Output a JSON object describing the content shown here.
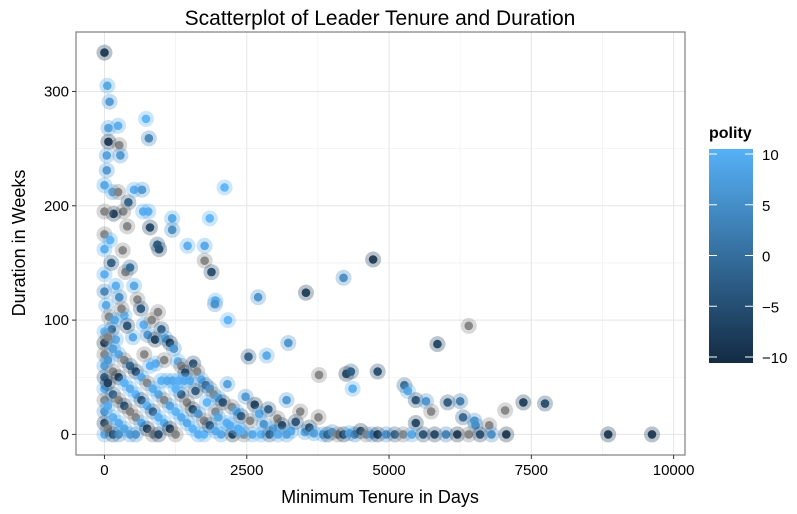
{
  "chart_data": {
    "type": "scatter",
    "title": "Scatterplot of Leader Tenure and Duration",
    "xlabel": "Minimum Tenure in Days",
    "ylabel": "Duration in Weeks",
    "xlim": [
      -500,
      10200
    ],
    "ylim": [
      -18,
      352
    ],
    "xticks": [
      0,
      2500,
      5000,
      7500,
      10000
    ],
    "xtick_labels": [
      "0",
      "2500",
      "5000",
      "7500",
      "10000"
    ],
    "yticks": [
      0,
      100,
      200,
      300
    ],
    "ytick_labels": [
      "0",
      "100",
      "200",
      "300"
    ],
    "grid": true,
    "legend": {
      "title": "polity",
      "placement": "right",
      "type": "colorbar",
      "range": [
        -10,
        10
      ],
      "ticks": [
        10,
        5,
        0,
        -5,
        -10
      ],
      "tick_labels": [
        "10",
        "5",
        "0",
        "−5",
        "−10"
      ],
      "low_color": "#132B43",
      "high_color": "#56B1F7",
      "na_color": "#7F7F7F"
    },
    "point_fields": [
      "min_tenure_days",
      "duration_weeks",
      "polity"
    ],
    "points": [
      [
        0,
        334,
        -9
      ],
      [
        50,
        305,
        8
      ],
      [
        90,
        291,
        6
      ],
      [
        70,
        268,
        7
      ],
      [
        240,
        270,
        9
      ],
      [
        260,
        253,
        null
      ],
      [
        70,
        256,
        -9
      ],
      [
        730,
        276,
        10
      ],
      [
        780,
        259,
        3
      ],
      [
        40,
        244,
        7
      ],
      [
        280,
        244,
        6
      ],
      [
        40,
        231,
        6
      ],
      [
        0,
        218,
        8
      ],
      [
        140,
        212,
        8
      ],
      [
        240,
        212,
        null
      ],
      [
        420,
        203,
        -3
      ],
      [
        520,
        214,
        9
      ],
      [
        660,
        214,
        6
      ],
      [
        680,
        195,
        9
      ],
      [
        770,
        195,
        9
      ],
      [
        330,
        195,
        null
      ],
      [
        160,
        193,
        -8
      ],
      [
        400,
        182,
        null
      ],
      [
        800,
        181,
        -7
      ],
      [
        2110,
        216,
        10
      ],
      [
        1850,
        189,
        10
      ],
      [
        0,
        195,
        null
      ],
      [
        0,
        175,
        null
      ],
      [
        0,
        162,
        9
      ],
      [
        320,
        161,
        null
      ],
      [
        960,
        162,
        -6
      ],
      [
        1190,
        189,
        8
      ],
      [
        1190,
        179,
        4
      ],
      [
        930,
        166,
        -4
      ],
      [
        1460,
        165,
        9
      ],
      [
        1760,
        165,
        8
      ],
      [
        1760,
        152,
        null
      ],
      [
        1880,
        142,
        -6
      ],
      [
        1950,
        117,
        10
      ],
      [
        1940,
        114,
        5
      ],
      [
        2170,
        100,
        10
      ],
      [
        2700,
        120,
        5
      ],
      [
        3540,
        124,
        -8
      ],
      [
        4200,
        137,
        4
      ],
      [
        4720,
        153,
        -9
      ],
      [
        6400,
        95,
        null
      ],
      [
        5850,
        79,
        -7
      ],
      [
        3230,
        80,
        5
      ],
      [
        2850,
        69,
        8
      ],
      [
        2530,
        68,
        -3
      ],
      [
        3770,
        52,
        null
      ],
      [
        4250,
        53,
        -8
      ],
      [
        4360,
        40,
        9
      ],
      [
        4330,
        55,
        -3
      ],
      [
        4800,
        55,
        -6
      ],
      [
        5270,
        43,
        -2
      ],
      [
        5330,
        38,
        8
      ],
      [
        5470,
        30,
        -5
      ],
      [
        5650,
        29,
        5
      ],
      [
        5740,
        20,
        null
      ],
      [
        6030,
        28,
        -4
      ],
      [
        6250,
        29,
        1
      ],
      [
        6300,
        15,
        -2
      ],
      [
        6520,
        8,
        4
      ],
      [
        6760,
        8,
        null
      ],
      [
        7040,
        21,
        null
      ],
      [
        7360,
        28,
        -8
      ],
      [
        7740,
        27,
        -6
      ],
      [
        7060,
        0,
        -9
      ],
      [
        8850,
        0,
        -9
      ],
      [
        9620,
        0,
        -9
      ],
      [
        5470,
        10,
        -7
      ],
      [
        6500,
        12,
        5
      ],
      [
        0,
        140,
        9
      ],
      [
        0,
        125,
        3
      ],
      [
        30,
        113,
        8
      ],
      [
        80,
        103,
        null
      ],
      [
        130,
        92,
        -2
      ],
      [
        200,
        83,
        9
      ],
      [
        260,
        120,
        4
      ],
      [
        350,
        104,
        10
      ],
      [
        370,
        142,
        null
      ],
      [
        450,
        146,
        -1
      ],
      [
        520,
        130,
        8
      ],
      [
        580,
        118,
        null
      ],
      [
        640,
        110,
        -4
      ],
      [
        690,
        96,
        9
      ],
      [
        760,
        87,
        5
      ],
      [
        830,
        100,
        null
      ],
      [
        890,
        83,
        -8
      ],
      [
        940,
        107,
        null
      ],
      [
        1000,
        92,
        -3
      ],
      [
        1070,
        84,
        7
      ],
      [
        1150,
        80,
        -9
      ],
      [
        1220,
        75,
        6
      ],
      [
        1290,
        64,
        10
      ],
      [
        1350,
        60,
        null
      ],
      [
        1420,
        54,
        -7
      ],
      [
        1500,
        47,
        8
      ],
      [
        1560,
        62,
        -5
      ],
      [
        1630,
        55,
        null
      ],
      [
        1700,
        48,
        9
      ],
      [
        1780,
        43,
        -2
      ],
      [
        1850,
        40,
        5
      ],
      [
        1920,
        35,
        null
      ],
      [
        2000,
        32,
        8
      ],
      [
        2080,
        28,
        -6
      ],
      [
        2160,
        44,
        7
      ],
      [
        2240,
        24,
        null
      ],
      [
        2320,
        20,
        9
      ],
      [
        2400,
        16,
        -4
      ],
      [
        2480,
        33,
        6
      ],
      [
        2560,
        12,
        null
      ],
      [
        2640,
        26,
        -8
      ],
      [
        2720,
        18,
        8
      ],
      [
        2800,
        9,
        5
      ],
      [
        2880,
        22,
        -3
      ],
      [
        2960,
        5,
        9
      ],
      [
        3040,
        14,
        null
      ],
      [
        3120,
        8,
        -7
      ],
      [
        3200,
        30,
        6
      ],
      [
        3280,
        3,
        9
      ],
      [
        3360,
        11,
        -5
      ],
      [
        3440,
        20,
        null
      ],
      [
        3520,
        2,
        8
      ],
      [
        3600,
        6,
        -6
      ],
      [
        3680,
        1,
        7
      ],
      [
        3760,
        15,
        null
      ],
      [
        3840,
        0,
        9
      ],
      [
        3920,
        0,
        -4
      ],
      [
        4000,
        2,
        5
      ],
      [
        4100,
        0,
        null
      ],
      [
        4200,
        0,
        -8
      ],
      [
        4300,
        1,
        8
      ],
      [
        4400,
        0,
        3
      ],
      [
        4500,
        3,
        -7
      ],
      [
        4600,
        0,
        null
      ],
      [
        4700,
        0,
        6
      ],
      [
        4800,
        0,
        -9
      ],
      [
        4950,
        0,
        4
      ],
      [
        5100,
        0,
        -3
      ],
      [
        5250,
        0,
        null
      ],
      [
        5400,
        0,
        8
      ],
      [
        5600,
        0,
        -5
      ],
      [
        5800,
        0,
        -7
      ],
      [
        6000,
        0,
        2
      ],
      [
        6200,
        0,
        -9
      ],
      [
        6400,
        0,
        null
      ],
      [
        6600,
        0,
        -6
      ],
      [
        6800,
        0,
        4
      ],
      [
        0,
        90,
        10
      ],
      [
        0,
        80,
        -9
      ],
      [
        0,
        70,
        null
      ],
      [
        0,
        60,
        7
      ],
      [
        0,
        50,
        -4
      ],
      [
        0,
        40,
        9
      ],
      [
        0,
        30,
        null
      ],
      [
        0,
        20,
        5
      ],
      [
        0,
        10,
        -7
      ],
      [
        0,
        0,
        9
      ],
      [
        60,
        85,
        null
      ],
      [
        60,
        65,
        6
      ],
      [
        60,
        45,
        -8
      ],
      [
        60,
        25,
        9
      ],
      [
        60,
        5,
        null
      ],
      [
        150,
        75,
        7
      ],
      [
        150,
        55,
        null
      ],
      [
        150,
        35,
        -3
      ],
      [
        150,
        15,
        10
      ],
      [
        150,
        0,
        -6
      ],
      [
        250,
        70,
        8
      ],
      [
        250,
        50,
        -9
      ],
      [
        250,
        30,
        null
      ],
      [
        250,
        10,
        9
      ],
      [
        250,
        0,
        4
      ],
      [
        350,
        65,
        null
      ],
      [
        350,
        45,
        10
      ],
      [
        350,
        25,
        -6
      ],
      [
        350,
        5,
        8
      ],
      [
        450,
        60,
        -2
      ],
      [
        450,
        40,
        9
      ],
      [
        450,
        20,
        null
      ],
      [
        450,
        0,
        7
      ],
      [
        550,
        55,
        -7
      ],
      [
        550,
        35,
        10
      ],
      [
        550,
        15,
        null
      ],
      [
        550,
        0,
        5
      ],
      [
        650,
        50,
        9
      ],
      [
        650,
        30,
        -5
      ],
      [
        650,
        10,
        8
      ],
      [
        750,
        45,
        null
      ],
      [
        750,
        25,
        10
      ],
      [
        750,
        5,
        -8
      ],
      [
        850,
        40,
        9
      ],
      [
        850,
        20,
        -3
      ],
      [
        850,
        0,
        null
      ],
      [
        950,
        35,
        8
      ],
      [
        950,
        15,
        10
      ],
      [
        950,
        0,
        -6
      ],
      [
        1050,
        30,
        null
      ],
      [
        1050,
        10,
        9
      ],
      [
        1150,
        25,
        7
      ],
      [
        1150,
        5,
        -9
      ],
      [
        1250,
        20,
        10
      ],
      [
        1250,
        0,
        null
      ],
      [
        1350,
        15,
        9
      ],
      [
        1350,
        35,
        -4
      ],
      [
        1450,
        10,
        8
      ],
      [
        1450,
        28,
        null
      ],
      [
        1550,
        5,
        10
      ],
      [
        1550,
        22,
        -7
      ],
      [
        1650,
        0,
        9
      ],
      [
        1650,
        18,
        6
      ],
      [
        1750,
        12,
        null
      ],
      [
        1750,
        0,
        10
      ],
      [
        1850,
        8,
        -5
      ],
      [
        1950,
        3,
        9
      ],
      [
        1950,
        20,
        null
      ],
      [
        2050,
        0,
        8
      ],
      [
        2150,
        10,
        10
      ],
      [
        2250,
        0,
        -8
      ],
      [
        2350,
        5,
        9
      ],
      [
        2450,
        0,
        null
      ],
      [
        2600,
        0,
        8
      ],
      [
        2750,
        0,
        10
      ],
      [
        2900,
        0,
        -3
      ],
      [
        3050,
        0,
        9
      ],
      [
        3200,
        0,
        7
      ],
      [
        1000,
        47,
        10
      ],
      [
        1100,
        47,
        9
      ],
      [
        1200,
        47,
        8
      ],
      [
        1300,
        47,
        10
      ],
      [
        1400,
        47,
        9
      ],
      [
        800,
        60,
        10
      ],
      [
        900,
        62,
        9
      ],
      [
        700,
        70,
        null
      ],
      [
        500,
        85,
        8
      ],
      [
        400,
        95,
        -5
      ],
      [
        300,
        110,
        null
      ],
      [
        200,
        130,
        9
      ],
      [
        120,
        150,
        -3
      ],
      [
        100,
        170,
        10
      ],
      [
        180,
        100,
        8
      ],
      [
        1050,
        65,
        null
      ],
      [
        1250,
        40,
        10
      ],
      [
        1600,
        38,
        -4
      ],
      [
        1800,
        28,
        10
      ],
      [
        2000,
        15,
        8
      ],
      [
        2200,
        8,
        9
      ],
      [
        2400,
        3,
        10
      ]
    ]
  }
}
